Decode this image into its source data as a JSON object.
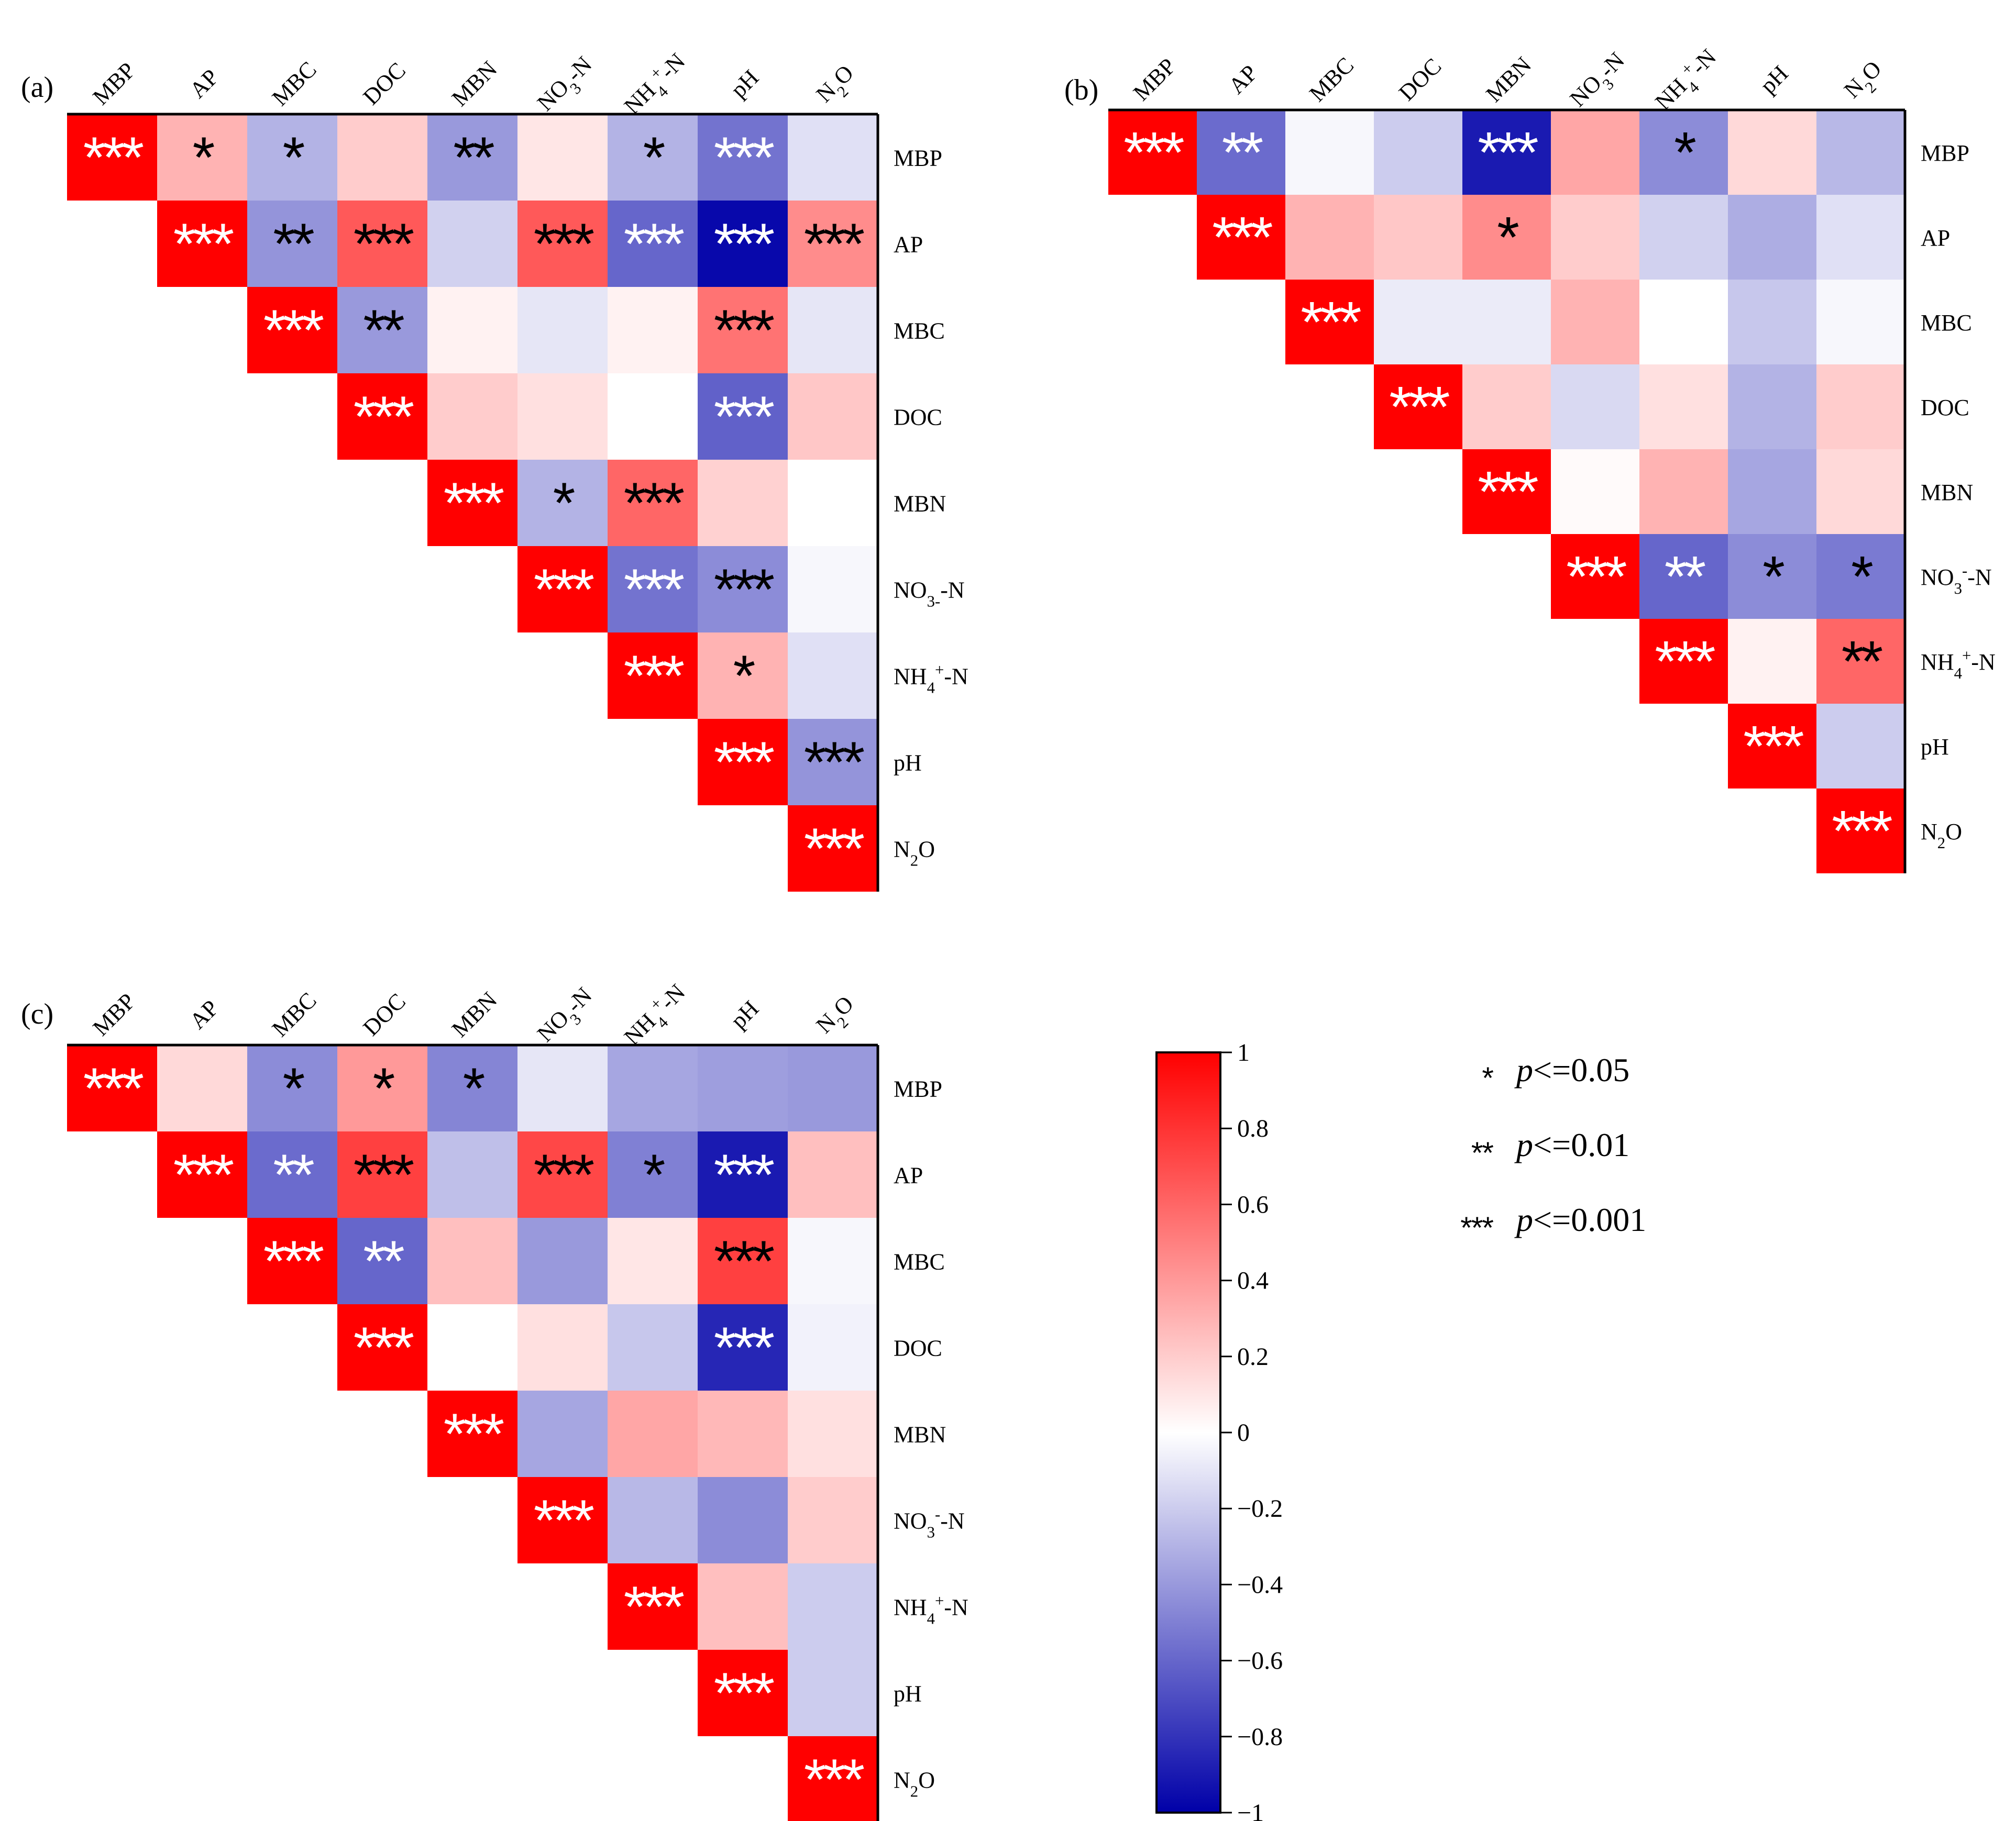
{
  "chart_data": [
    {
      "type": "heatmap",
      "panel_label": "(a)",
      "variables": [
        "MBP",
        "AP",
        "MBC",
        "DOC",
        "MBN",
        "NO3--N",
        "NH4+-N",
        "pH",
        "N2O"
      ],
      "top_labels": [
        [
          "MBP"
        ],
        [
          "AP"
        ],
        [
          "MBC"
        ],
        [
          "DOC"
        ],
        [
          "MBN"
        ],
        [
          "NO",
          "3",
          "-N"
        ],
        [
          "NH",
          "4",
          "+",
          "-N"
        ],
        [
          "pH"
        ],
        [
          "N",
          "2",
          "O"
        ]
      ],
      "right_labels": [
        [
          "MBP"
        ],
        [
          "AP"
        ],
        [
          "MBC"
        ],
        [
          "DOC"
        ],
        [
          "MBN"
        ],
        [
          "NO",
          "3-",
          "-N"
        ],
        [
          "NH",
          "4",
          "+",
          "-N"
        ],
        [
          "pH"
        ],
        [
          "N",
          "2",
          "O"
        ]
      ],
      "cells": [
        [
          1,
          0.3,
          -0.3,
          0.2,
          -0.4,
          0.1,
          -0.3,
          -0.55,
          -0.12
        ],
        [
          null,
          1,
          -0.42,
          0.65,
          -0.18,
          0.65,
          -0.6,
          -0.97,
          0.45
        ],
        [
          null,
          null,
          1,
          -0.4,
          0.05,
          -0.1,
          0.05,
          0.55,
          -0.1
        ],
        [
          null,
          null,
          null,
          1,
          0.2,
          0.12,
          0.0,
          -0.62,
          0.22
        ],
        [
          null,
          null,
          null,
          null,
          1,
          -0.3,
          0.6,
          0.18,
          0.0
        ],
        [
          null,
          null,
          null,
          null,
          null,
          1,
          -0.55,
          -0.45,
          -0.03
        ],
        [
          null,
          null,
          null,
          null,
          null,
          null,
          1,
          0.3,
          -0.12
        ],
        [
          null,
          null,
          null,
          null,
          null,
          null,
          null,
          1,
          -0.42
        ],
        [
          null,
          null,
          null,
          null,
          null,
          null,
          null,
          null,
          1
        ]
      ],
      "stars": [
        [
          "***",
          "*",
          "*",
          "",
          "**",
          "",
          "*",
          "***",
          ""
        ],
        [
          null,
          "***",
          "**",
          "***",
          "",
          "***",
          "***",
          "***",
          "***"
        ],
        [
          null,
          null,
          "***",
          "**",
          "",
          "",
          "",
          "***",
          ""
        ],
        [
          null,
          null,
          null,
          "***",
          "",
          "",
          "",
          "***",
          ""
        ],
        [
          null,
          null,
          null,
          null,
          "***",
          "*",
          "***",
          "",
          ""
        ],
        [
          null,
          null,
          null,
          null,
          null,
          "***",
          "***",
          "***",
          ""
        ],
        [
          null,
          null,
          null,
          null,
          null,
          null,
          "***",
          "*",
          ""
        ],
        [
          null,
          null,
          null,
          null,
          null,
          null,
          null,
          "***",
          "***"
        ],
        [
          null,
          null,
          null,
          null,
          null,
          null,
          null,
          null,
          "***"
        ]
      ]
    },
    {
      "type": "heatmap",
      "panel_label": "(b)",
      "variables": [
        "MBP",
        "AP",
        "MBC",
        "DOC",
        "MBN",
        "NO3--N",
        "NH4+-N",
        "pH",
        "N2O"
      ],
      "top_labels": [
        [
          "MBP"
        ],
        [
          "AP"
        ],
        [
          "MBC"
        ],
        [
          "DOC"
        ],
        [
          "MBN"
        ],
        [
          "NO",
          "3",
          "-N"
        ],
        [
          "NH",
          "4",
          "+",
          "-N"
        ],
        [
          "pH"
        ],
        [
          "N",
          "2",
          "O"
        ]
      ],
      "right_labels": [
        [
          "MBP"
        ],
        [
          "AP"
        ],
        [
          "MBC"
        ],
        [
          "DOC"
        ],
        [
          "MBN"
        ],
        [
          "NO",
          "3",
          "-",
          "-N"
        ],
        [
          "NH",
          "4",
          "+",
          "-N"
        ],
        [
          "pH"
        ],
        [
          "N",
          "2",
          "O"
        ]
      ],
      "cells": [
        [
          1,
          -0.58,
          -0.03,
          -0.2,
          -0.9,
          0.35,
          -0.45,
          0.15,
          -0.28
        ],
        [
          null,
          1,
          0.3,
          0.22,
          0.45,
          0.2,
          -0.18,
          -0.32,
          -0.12
        ],
        [
          null,
          null,
          1,
          -0.08,
          -0.08,
          0.3,
          0.0,
          -0.22,
          -0.03
        ],
        [
          null,
          null,
          null,
          1,
          0.2,
          -0.15,
          0.12,
          -0.3,
          0.2
        ],
        [
          null,
          null,
          null,
          null,
          1,
          0.02,
          0.3,
          -0.35,
          0.15
        ],
        [
          null,
          null,
          null,
          null,
          null,
          1,
          -0.6,
          -0.45,
          -0.52
        ],
        [
          null,
          null,
          null,
          null,
          null,
          null,
          1,
          0.05,
          0.6
        ],
        [
          null,
          null,
          null,
          null,
          null,
          null,
          null,
          1,
          -0.2
        ],
        [
          null,
          null,
          null,
          null,
          null,
          null,
          null,
          null,
          1
        ]
      ],
      "stars": [
        [
          "***",
          "**",
          "",
          "",
          "***",
          "",
          "*",
          "",
          ""
        ],
        [
          null,
          "***",
          "",
          "",
          "*",
          "",
          "",
          "",
          ""
        ],
        [
          null,
          null,
          "***",
          "",
          "",
          "",
          "",
          "",
          ""
        ],
        [
          null,
          null,
          null,
          "***",
          "",
          "",
          "",
          "",
          ""
        ],
        [
          null,
          null,
          null,
          null,
          "***",
          "",
          "",
          "",
          ""
        ],
        [
          null,
          null,
          null,
          null,
          null,
          "***",
          "**",
          "*",
          "*"
        ],
        [
          null,
          null,
          null,
          null,
          null,
          null,
          "***",
          "",
          "**"
        ],
        [
          null,
          null,
          null,
          null,
          null,
          null,
          null,
          "***",
          ""
        ],
        [
          null,
          null,
          null,
          null,
          null,
          null,
          null,
          null,
          "***"
        ]
      ]
    },
    {
      "type": "heatmap",
      "panel_label": "(c)",
      "variables": [
        "MBP",
        "AP",
        "MBC",
        "DOC",
        "MBN",
        "NO3--N",
        "NH4+-N",
        "pH",
        "N2O"
      ],
      "top_labels": [
        [
          "MBP"
        ],
        [
          "AP"
        ],
        [
          "MBC"
        ],
        [
          "DOC"
        ],
        [
          "MBN"
        ],
        [
          "NO",
          "3",
          "-N"
        ],
        [
          "NH",
          "4",
          "+",
          "-N"
        ],
        [
          "pH"
        ],
        [
          "N",
          "2",
          "O"
        ]
      ],
      "right_labels": [
        [
          "MBP"
        ],
        [
          "AP"
        ],
        [
          "MBC"
        ],
        [
          "DOC"
        ],
        [
          "MBN"
        ],
        [
          "NO",
          "3",
          "-",
          "-N"
        ],
        [
          "NH",
          "4",
          "+",
          "-N"
        ],
        [
          "pH"
        ],
        [
          "N",
          "2",
          "O"
        ]
      ],
      "cells": [
        [
          1,
          0.15,
          -0.45,
          0.4,
          -0.48,
          -0.1,
          -0.35,
          -0.38,
          -0.4
        ],
        [
          null,
          1,
          -0.58,
          0.75,
          -0.25,
          0.72,
          -0.5,
          -0.9,
          0.25
        ],
        [
          null,
          null,
          1,
          -0.6,
          0.25,
          -0.4,
          0.1,
          0.75,
          -0.03
        ],
        [
          null,
          null,
          null,
          1,
          0.0,
          0.12,
          -0.22,
          -0.85,
          -0.05
        ],
        [
          null,
          null,
          null,
          null,
          1,
          -0.35,
          0.35,
          0.28,
          0.12
        ],
        [
          null,
          null,
          null,
          null,
          null,
          1,
          -0.28,
          -0.45,
          0.2
        ],
        [
          null,
          null,
          null,
          null,
          null,
          null,
          1,
          0.25,
          -0.2
        ],
        [
          null,
          null,
          null,
          null,
          null,
          null,
          null,
          1,
          -0.2
        ],
        [
          null,
          null,
          null,
          null,
          null,
          null,
          null,
          null,
          1
        ]
      ],
      "stars": [
        [
          "***",
          "",
          "*",
          "*",
          "*",
          "",
          "",
          "",
          ""
        ],
        [
          null,
          "***",
          "**",
          "***",
          "",
          "***",
          "*",
          "***",
          ""
        ],
        [
          null,
          null,
          "***",
          "**",
          "",
          "",
          "",
          "***",
          ""
        ],
        [
          null,
          null,
          null,
          "***",
          "",
          "",
          "",
          "***",
          ""
        ],
        [
          null,
          null,
          null,
          null,
          "***",
          "",
          "",
          "",
          ""
        ],
        [
          null,
          null,
          null,
          null,
          null,
          "***",
          "",
          "",
          ""
        ],
        [
          null,
          null,
          null,
          null,
          null,
          null,
          "***",
          "",
          ""
        ],
        [
          null,
          null,
          null,
          null,
          null,
          null,
          null,
          "***",
          ""
        ],
        [
          null,
          null,
          null,
          null,
          null,
          null,
          null,
          null,
          "***"
        ]
      ]
    }
  ],
  "colorbar": {
    "min": -1,
    "max": 1,
    "tick_labels": [
      "1",
      "0.8",
      "0.6",
      "0.4",
      "0.2",
      "0",
      "−0.2",
      "−0.4",
      "−0.6",
      "−0.8",
      "−1"
    ],
    "colors": {
      "neg": "#0000a8",
      "zero": "#ffffff",
      "pos": "#ff0000"
    }
  },
  "legend": [
    {
      "stars": "*",
      "p": "p",
      "text": "<=0.05"
    },
    {
      "stars": "**",
      "p": "p",
      "text": "<=0.01"
    },
    {
      "stars": "***",
      "p": "p",
      "text": "<=0.001"
    }
  ]
}
